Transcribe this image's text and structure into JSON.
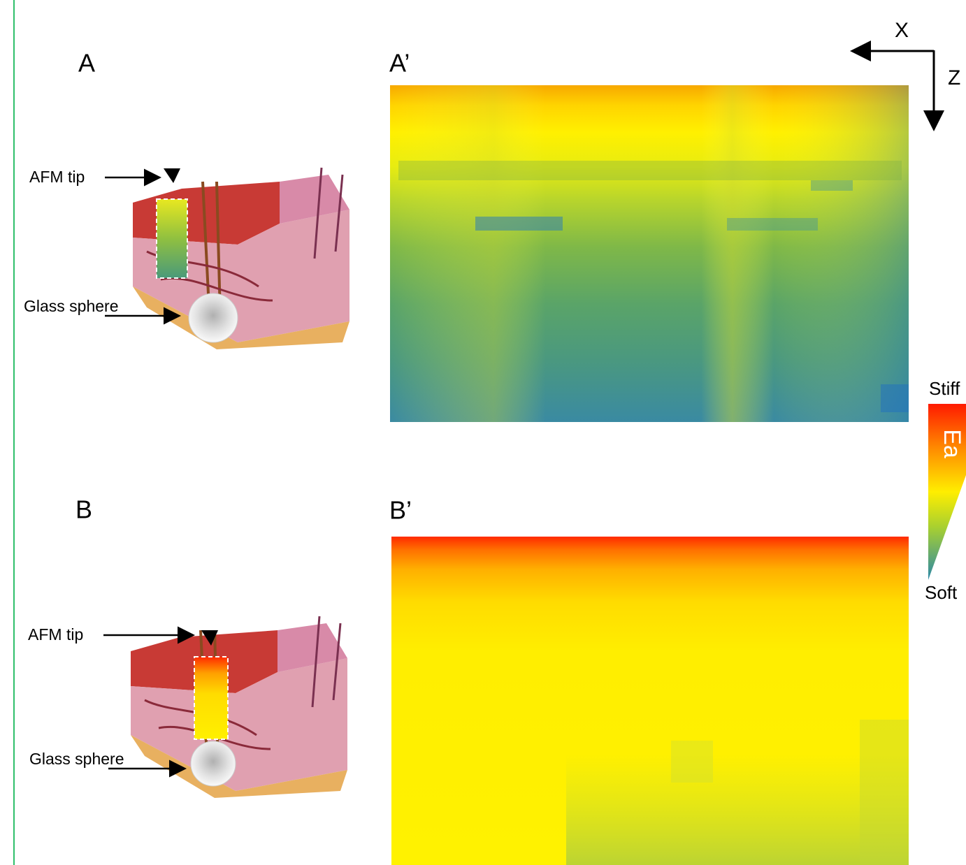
{
  "panels": [
    {
      "label": "A",
      "heatmap_label": "A’",
      "afm_tip": "AFM tip",
      "glass_sphere": "Glass sphere"
    },
    {
      "label": "B",
      "heatmap_label": "B’",
      "afm_tip": "AFM tip",
      "glass_sphere": "Glass sphere"
    }
  ],
  "axes": {
    "x": "X",
    "z": "Z"
  },
  "colorbar": {
    "top": "Stiff",
    "bottom": "Soft",
    "title": "Ea"
  }
}
